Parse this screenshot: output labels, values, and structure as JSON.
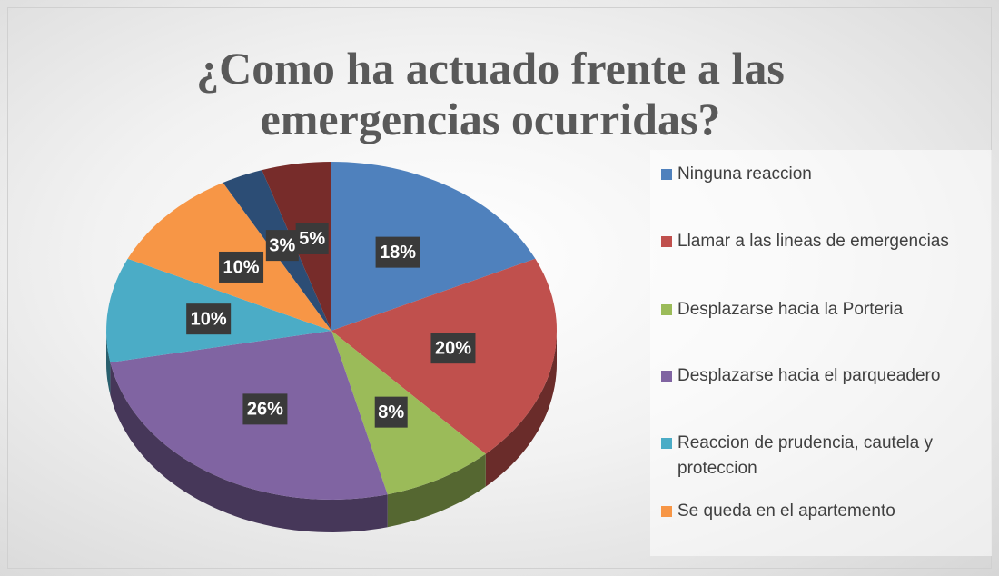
{
  "chart_data": {
    "type": "pie",
    "title": [
      "¿Como ha actuado frente a las",
      "emergencias ocurridas?"
    ],
    "categories": [
      "Ninguna reaccion",
      "Llamar a las lineas de emergencias",
      "Desplazarse hacia la Porteria",
      "Desplazarse hacia el parqueadero",
      "Reaccion de prudencia, cautela y proteccion",
      "Se queda en el apartemento",
      null,
      null
    ],
    "values": [
      18,
      20,
      8,
      26,
      10,
      10,
      3,
      5
    ],
    "value_labels": [
      "18%",
      "20%",
      "8%",
      "26%",
      "10%",
      "10%",
      "3%",
      "5%"
    ],
    "colors": [
      "#4f81bd",
      "#c0504d",
      "#9bbb59",
      "#8064a2",
      "#4bacc6",
      "#f79646",
      "#2c4d75",
      "#772c2a"
    ],
    "three_d": true,
    "legend": "right"
  }
}
